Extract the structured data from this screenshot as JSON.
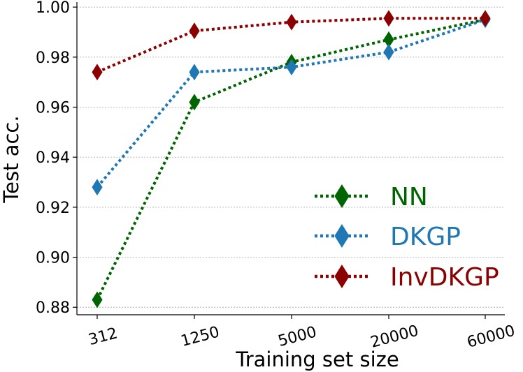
{
  "chart_data": {
    "type": "line",
    "categories": [
      "312",
      "1250",
      "5000",
      "20000",
      "60000"
    ],
    "series": [
      {
        "name": "NN",
        "color": "#006400",
        "values": [
          0.883,
          0.962,
          0.978,
          0.987,
          0.995
        ]
      },
      {
        "name": "DKGP",
        "color": "#1f77b4",
        "values": [
          0.928,
          0.974,
          0.976,
          0.982,
          0.995
        ]
      },
      {
        "name": "InvDKGP",
        "color": "#8b0000",
        "values": [
          0.974,
          0.9905,
          0.994,
          0.9955,
          0.9955
        ]
      }
    ],
    "title": "",
    "xlabel": "Training set size",
    "ylabel": "Test acc.",
    "ylim": [
      0.877,
      1.002
    ],
    "yticks": [
      "0.88",
      "0.90",
      "0.92",
      "0.94",
      "0.96",
      "0.98",
      "1.00"
    ],
    "grid": "horizontal",
    "legend_position": "lower-right",
    "marker": "thin-diamond",
    "line_style": "dotted"
  }
}
